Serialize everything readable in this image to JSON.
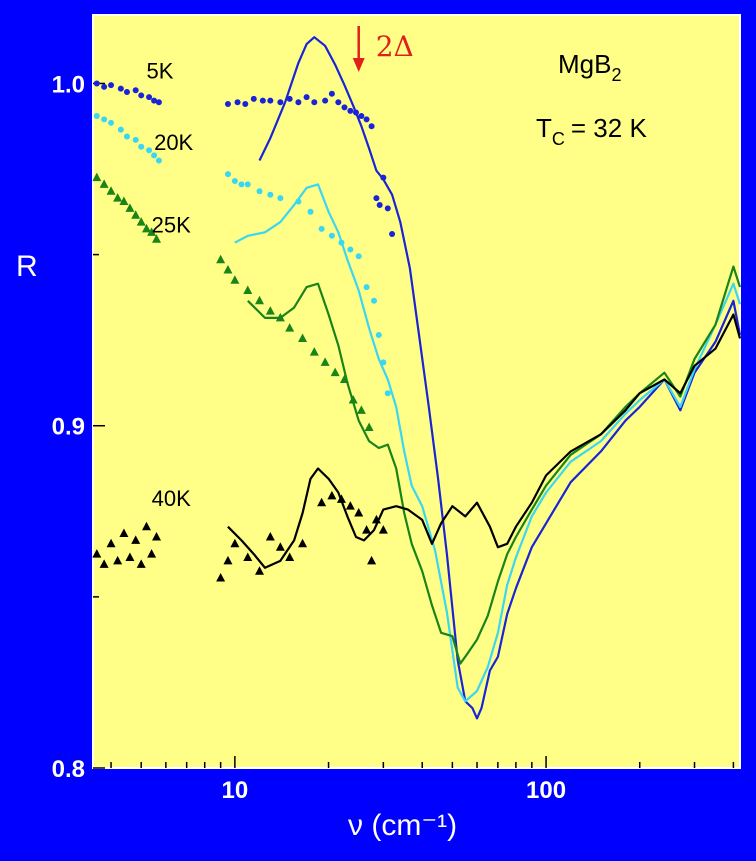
{
  "chart_data": {
    "type": "line",
    "xlabel": "ν (cm⁻¹)",
    "ylabel": "R",
    "xscale": "log",
    "xlim": [
      3.5,
      420
    ],
    "ylim": [
      0.8,
      1.02
    ],
    "x_ticks": [
      10,
      100
    ],
    "x_tick_labels": [
      "10",
      "100"
    ],
    "y_ticks": [
      0.8,
      0.9,
      1.0
    ],
    "y_tick_labels": [
      "0.8",
      "0.9",
      "1.0"
    ],
    "grid": false,
    "annotations": {
      "material": "MgB",
      "material_sub": "2",
      "tc_main": "T",
      "tc_sub": "C",
      "tc_value": "= 32 K",
      "gap_label": "2Δ",
      "gap_x": 25
    },
    "colors": {
      "background": "#0000ff",
      "plot_area": "#ffff88",
      "gap_arrow": "#e0201b"
    },
    "series": [
      {
        "name": "5K",
        "color": "#1a24d6",
        "marker": "circle",
        "label_pos": [
          5.2,
          1.0015
        ],
        "points": [
          [
            3.6,
            1.0
          ],
          [
            3.8,
            0.999
          ],
          [
            4.0,
            0.9995
          ],
          [
            4.3,
            0.9985
          ],
          [
            4.5,
            0.9975
          ],
          [
            4.8,
            0.998
          ],
          [
            5.0,
            0.9965
          ],
          [
            5.3,
            0.996
          ],
          [
            5.5,
            0.995
          ],
          [
            5.7,
            0.9945
          ],
          [
            9.5,
            0.994
          ],
          [
            10.2,
            0.9945
          ],
          [
            10.8,
            0.994
          ],
          [
            11.5,
            0.9955
          ],
          [
            12.3,
            0.995
          ],
          [
            13.0,
            0.995
          ],
          [
            14.0,
            0.9945
          ],
          [
            15.0,
            0.9955
          ],
          [
            16.0,
            0.9945
          ],
          [
            17.0,
            0.996
          ],
          [
            18.0,
            0.9945
          ],
          [
            19.5,
            0.995
          ],
          [
            20.5,
            0.997
          ],
          [
            21.5,
            0.9945
          ],
          [
            22.5,
            0.993
          ],
          [
            23.5,
            0.992
          ],
          [
            24.5,
            0.9915
          ],
          [
            25.5,
            0.9905
          ],
          [
            26.5,
            0.9895
          ],
          [
            27.5,
            0.9875
          ],
          [
            28.5,
            0.9665
          ],
          [
            29.2,
            0.9645
          ],
          [
            30.0,
            0.9725
          ],
          [
            31.0,
            0.9635
          ],
          [
            32.0,
            0.956
          ]
        ],
        "line": [
          [
            12.0,
            0.9775
          ],
          [
            13.0,
            0.984
          ],
          [
            14.5,
            0.9945
          ],
          [
            16.0,
            1.006
          ],
          [
            17.0,
            1.0115
          ],
          [
            18.0,
            1.0135
          ],
          [
            19.5,
            1.011
          ],
          [
            21.0,
            1.0055
          ],
          [
            22.5,
            0.9995
          ],
          [
            24.0,
            0.9935
          ],
          [
            25.5,
            0.9875
          ],
          [
            27.0,
            0.981
          ],
          [
            28.5,
            0.9745
          ],
          [
            30.0,
            0.972
          ],
          [
            32.0,
            0.9675
          ],
          [
            34.0,
            0.9595
          ],
          [
            36.5,
            0.946
          ],
          [
            39.0,
            0.927
          ],
          [
            42.0,
            0.9055
          ],
          [
            45.0,
            0.8845
          ],
          [
            48.0,
            0.8625
          ],
          [
            52.0,
            0.8315
          ],
          [
            55.0,
            0.8195
          ],
          [
            58.0,
            0.8175
          ],
          [
            60.0,
            0.8145
          ],
          [
            62.0,
            0.8175
          ],
          [
            66.0,
            0.8285
          ],
          [
            70.0,
            0.8325
          ],
          [
            75.0,
            0.845
          ],
          [
            80.0,
            0.8525
          ],
          [
            90.0,
            0.8645
          ],
          [
            100.0,
            0.8715
          ],
          [
            120.0,
            0.8835
          ],
          [
            150.0,
            0.8925
          ],
          [
            180.0,
            0.9015
          ],
          [
            200.0,
            0.9055
          ],
          [
            240.0,
            0.9135
          ],
          [
            270.0,
            0.9045
          ],
          [
            300.0,
            0.9155
          ],
          [
            350.0,
            0.9245
          ],
          [
            400.0,
            0.9365
          ],
          [
            420.0,
            0.9265
          ]
        ]
      },
      {
        "name": "20K",
        "color": "#3ad6f2",
        "marker": "circle",
        "label_pos": [
          5.5,
          0.9805
        ],
        "points": [
          [
            3.6,
            0.9905
          ],
          [
            3.8,
            0.9895
          ],
          [
            4.0,
            0.9885
          ],
          [
            4.3,
            0.9865
          ],
          [
            4.5,
            0.9845
          ],
          [
            4.8,
            0.9835
          ],
          [
            5.0,
            0.9815
          ],
          [
            5.3,
            0.9805
          ],
          [
            5.5,
            0.979
          ],
          [
            5.7,
            0.9775
          ],
          [
            9.5,
            0.9735
          ],
          [
            10.0,
            0.9715
          ],
          [
            10.5,
            0.9705
          ],
          [
            11.0,
            0.9705
          ],
          [
            12.0,
            0.9685
          ],
          [
            13.0,
            0.9675
          ],
          [
            14.0,
            0.9665
          ],
          [
            16.0,
            0.9655
          ],
          [
            17.5,
            0.9625
          ],
          [
            19.0,
            0.9575
          ],
          [
            20.5,
            0.9555
          ],
          [
            22.0,
            0.9535
          ],
          [
            23.5,
            0.9515
          ],
          [
            25.0,
            0.9495
          ],
          [
            26.5,
            0.9405
          ],
          [
            28.0,
            0.9365
          ],
          [
            29.0,
            0.9265
          ],
          [
            30.0,
            0.9185
          ],
          [
            31.0,
            0.9095
          ]
        ],
        "line": [
          [
            10.0,
            0.9535
          ],
          [
            11.0,
            0.9555
          ],
          [
            12.5,
            0.9565
          ],
          [
            14.0,
            0.9595
          ],
          [
            15.5,
            0.9645
          ],
          [
            17.0,
            0.9695
          ],
          [
            18.5,
            0.9705
          ],
          [
            20.0,
            0.9625
          ],
          [
            21.5,
            0.9565
          ],
          [
            23.0,
            0.9485
          ],
          [
            25.0,
            0.9395
          ],
          [
            27.0,
            0.9285
          ],
          [
            29.0,
            0.9195
          ],
          [
            31.0,
            0.9135
          ],
          [
            33.0,
            0.9055
          ],
          [
            35.0,
            0.8925
          ],
          [
            37.0,
            0.8825
          ],
          [
            40.0,
            0.8765
          ],
          [
            44.0,
            0.8635
          ],
          [
            48.0,
            0.8455
          ],
          [
            52.0,
            0.8235
          ],
          [
            55.0,
            0.8195
          ],
          [
            60.0,
            0.8225
          ],
          [
            65.0,
            0.8295
          ],
          [
            70.0,
            0.8395
          ],
          [
            75.0,
            0.8535
          ],
          [
            80.0,
            0.8615
          ],
          [
            90.0,
            0.8735
          ],
          [
            100.0,
            0.8805
          ],
          [
            120.0,
            0.8895
          ],
          [
            150.0,
            0.8955
          ],
          [
            180.0,
            0.9035
          ],
          [
            200.0,
            0.9075
          ],
          [
            240.0,
            0.9135
          ],
          [
            270.0,
            0.9055
          ],
          [
            300.0,
            0.9165
          ],
          [
            350.0,
            0.9295
          ],
          [
            400.0,
            0.9415
          ],
          [
            420.0,
            0.9355
          ]
        ]
      },
      {
        "name": "25K",
        "color": "#1a8418",
        "marker": "triangle",
        "label_pos": [
          5.4,
          0.9565
        ],
        "points": [
          [
            3.6,
            0.9725
          ],
          [
            3.8,
            0.9705
          ],
          [
            4.0,
            0.9685
          ],
          [
            4.2,
            0.9665
          ],
          [
            4.4,
            0.9655
          ],
          [
            4.6,
            0.9635
          ],
          [
            4.8,
            0.9615
          ],
          [
            5.0,
            0.9595
          ],
          [
            5.2,
            0.9575
          ],
          [
            5.4,
            0.9565
          ],
          [
            5.6,
            0.9545
          ],
          [
            9.0,
            0.9485
          ],
          [
            9.5,
            0.9455
          ],
          [
            10.0,
            0.9425
          ],
          [
            11.0,
            0.9395
          ],
          [
            12.0,
            0.9365
          ],
          [
            13.0,
            0.9335
          ],
          [
            14.0,
            0.9315
          ],
          [
            15.0,
            0.9285
          ],
          [
            16.5,
            0.9255
          ],
          [
            18.0,
            0.9215
          ],
          [
            19.5,
            0.9185
          ],
          [
            21.0,
            0.9155
          ],
          [
            22.5,
            0.9135
          ],
          [
            24.0,
            0.9075
          ],
          [
            25.5,
            0.9045
          ],
          [
            27.0,
            0.8995
          ]
        ],
        "line": [
          [
            11.0,
            0.9365
          ],
          [
            12.5,
            0.9315
          ],
          [
            14.0,
            0.9315
          ],
          [
            15.5,
            0.9345
          ],
          [
            17.0,
            0.9405
          ],
          [
            18.5,
            0.9415
          ],
          [
            20.0,
            0.9325
          ],
          [
            21.5,
            0.9235
          ],
          [
            23.0,
            0.9125
          ],
          [
            25.0,
            0.9015
          ],
          [
            27.0,
            0.8955
          ],
          [
            29.0,
            0.8935
          ],
          [
            31.0,
            0.8945
          ],
          [
            33.0,
            0.8875
          ],
          [
            35.0,
            0.8745
          ],
          [
            37.0,
            0.8655
          ],
          [
            40.0,
            0.8575
          ],
          [
            43.0,
            0.8475
          ],
          [
            46.0,
            0.8395
          ],
          [
            50.0,
            0.8385
          ],
          [
            53.0,
            0.8305
          ],
          [
            56.0,
            0.8335
          ],
          [
            60.0,
            0.8375
          ],
          [
            65.0,
            0.8445
          ],
          [
            70.0,
            0.8545
          ],
          [
            75.0,
            0.8625
          ],
          [
            80.0,
            0.8675
          ],
          [
            90.0,
            0.8755
          ],
          [
            100.0,
            0.8825
          ],
          [
            120.0,
            0.8915
          ],
          [
            150.0,
            0.8975
          ],
          [
            180.0,
            0.9055
          ],
          [
            200.0,
            0.9095
          ],
          [
            240.0,
            0.9155
          ],
          [
            270.0,
            0.9085
          ],
          [
            300.0,
            0.9195
          ],
          [
            350.0,
            0.9295
          ],
          [
            400.0,
            0.9465
          ],
          [
            420.0,
            0.9405
          ]
        ]
      },
      {
        "name": "40K",
        "color": "#000000",
        "marker": "triangle",
        "label_pos": [
          5.4,
          0.8765
        ],
        "points": [
          [
            3.6,
            0.8625
          ],
          [
            3.8,
            0.8595
          ],
          [
            4.0,
            0.8655
          ],
          [
            4.2,
            0.8605
          ],
          [
            4.4,
            0.8685
          ],
          [
            4.6,
            0.8615
          ],
          [
            4.8,
            0.8665
          ],
          [
            5.0,
            0.8595
          ],
          [
            5.2,
            0.8705
          ],
          [
            5.4,
            0.8625
          ],
          [
            5.6,
            0.8675
          ],
          [
            9.0,
            0.8555
          ],
          [
            9.5,
            0.8605
          ],
          [
            10.0,
            0.8655
          ],
          [
            11.0,
            0.8615
          ],
          [
            12.0,
            0.8575
          ],
          [
            13.0,
            0.8675
          ],
          [
            14.0,
            0.8645
          ],
          [
            15.0,
            0.8615
          ],
          [
            16.5,
            0.8655
          ],
          [
            19.0,
            0.8775
          ],
          [
            20.5,
            0.8795
          ],
          [
            22.0,
            0.8785
          ],
          [
            23.5,
            0.8765
          ],
          [
            25.0,
            0.8745
          ],
          [
            26.5,
            0.8695
          ],
          [
            27.5,
            0.8605
          ],
          [
            28.5,
            0.8725
          ],
          [
            30.0,
            0.8695
          ]
        ],
        "line": [
          [
            9.5,
            0.8705
          ],
          [
            10.5,
            0.8665
          ],
          [
            11.5,
            0.8625
          ],
          [
            12.5,
            0.8585
          ],
          [
            14.0,
            0.8605
          ],
          [
            15.5,
            0.8665
          ],
          [
            16.5,
            0.8745
          ],
          [
            17.5,
            0.8845
          ],
          [
            18.5,
            0.8875
          ],
          [
            20.0,
            0.8845
          ],
          [
            21.5,
            0.8805
          ],
          [
            23.0,
            0.8735
          ],
          [
            24.5,
            0.8675
          ],
          [
            26.0,
            0.8665
          ],
          [
            28.0,
            0.8695
          ],
          [
            30.0,
            0.8755
          ],
          [
            33.0,
            0.8765
          ],
          [
            36.0,
            0.8755
          ],
          [
            40.0,
            0.8725
          ],
          [
            43.0,
            0.8655
          ],
          [
            46.0,
            0.8715
          ],
          [
            50.0,
            0.8765
          ],
          [
            55.0,
            0.8735
          ],
          [
            60.0,
            0.8775
          ],
          [
            66.0,
            0.8705
          ],
          [
            70.0,
            0.8645
          ],
          [
            75.0,
            0.8655
          ],
          [
            80.0,
            0.8705
          ],
          [
            90.0,
            0.8775
          ],
          [
            100.0,
            0.8855
          ],
          [
            120.0,
            0.8925
          ],
          [
            150.0,
            0.8975
          ],
          [
            180.0,
            0.9045
          ],
          [
            200.0,
            0.9095
          ],
          [
            240.0,
            0.9135
          ],
          [
            270.0,
            0.9095
          ],
          [
            300.0,
            0.9175
          ],
          [
            350.0,
            0.9225
          ],
          [
            400.0,
            0.9325
          ],
          [
            420.0,
            0.9255
          ]
        ]
      }
    ]
  }
}
